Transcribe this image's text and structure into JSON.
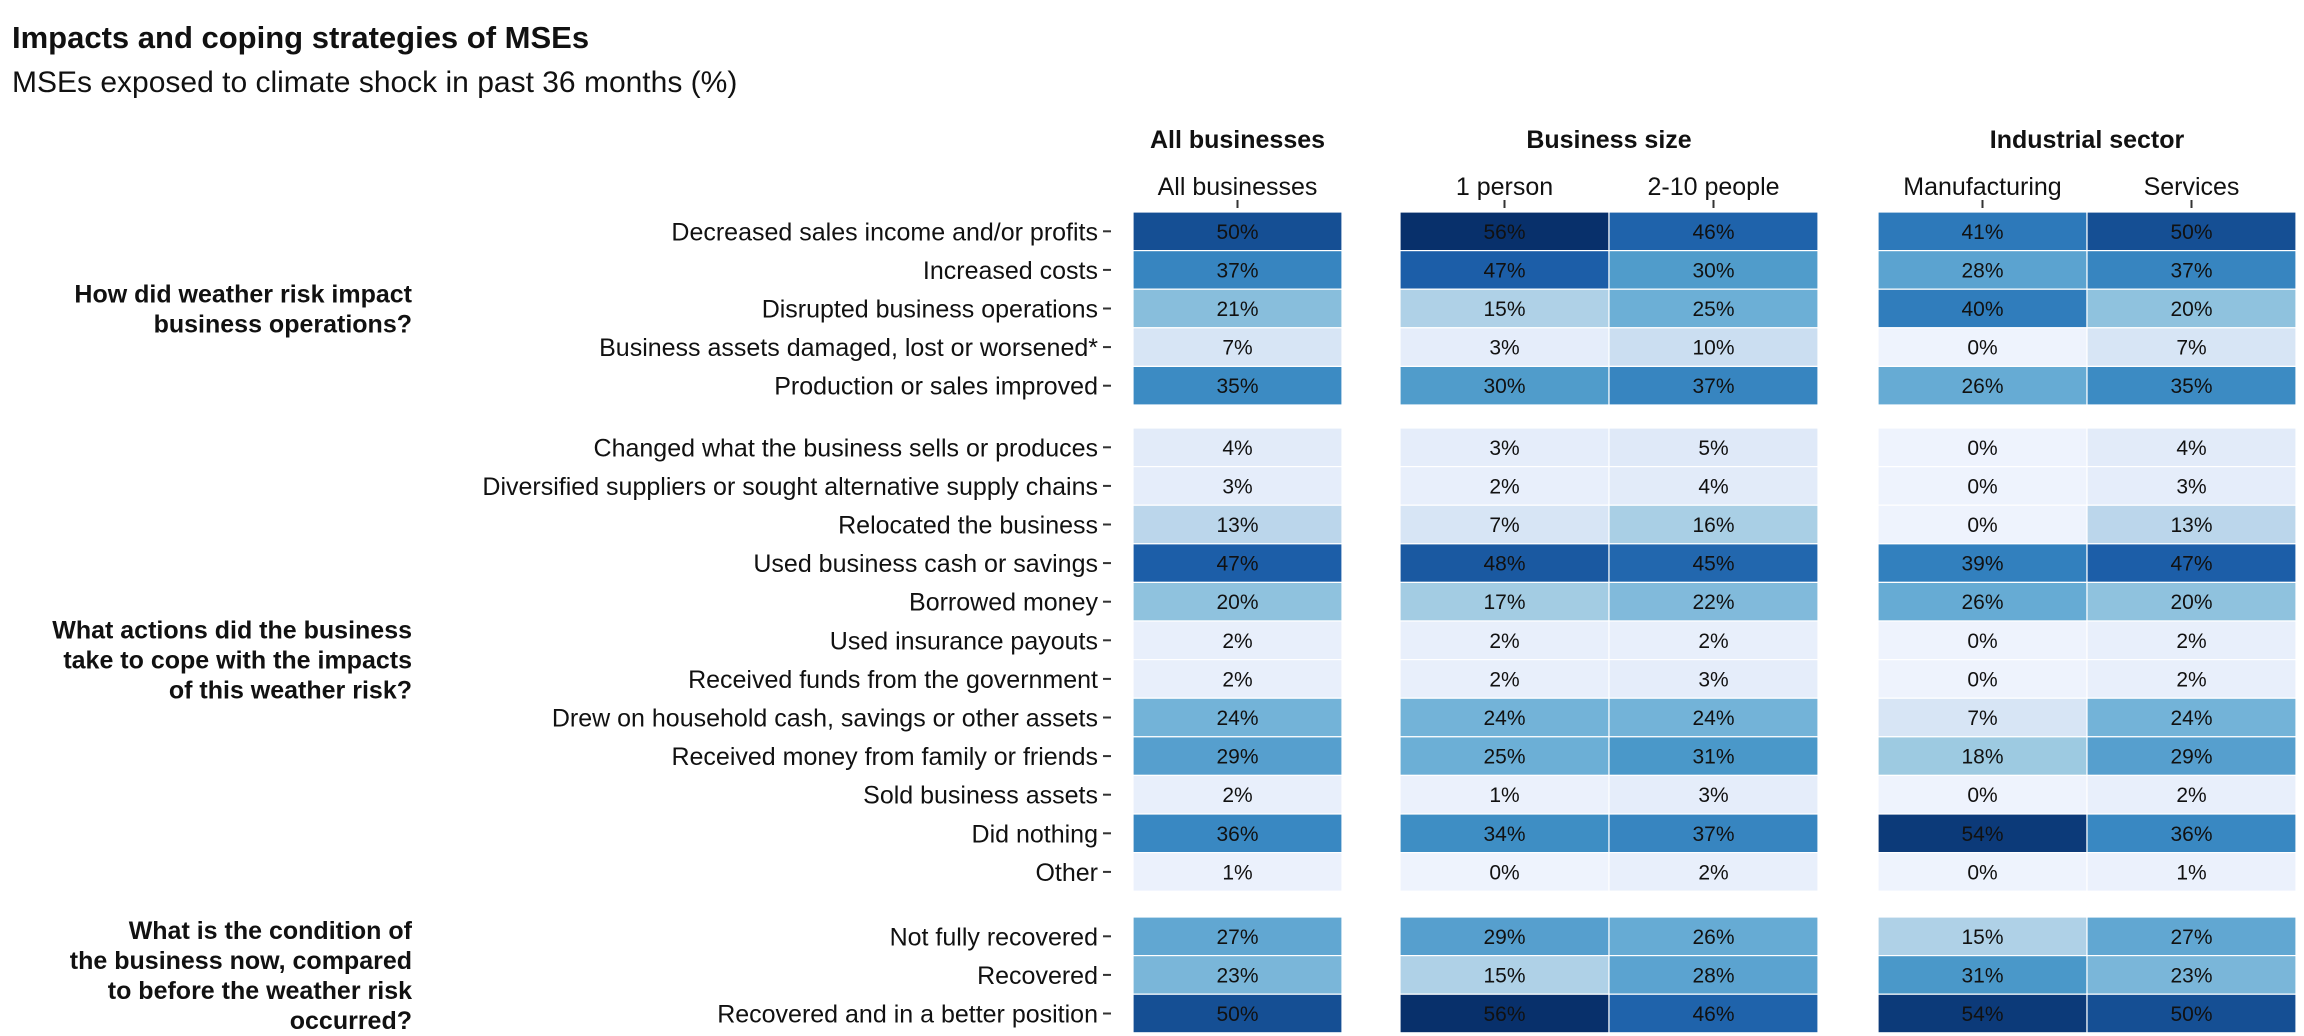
{
  "chart_data": {
    "type": "heatmap",
    "title": "Impacts and coping strategies of MSEs",
    "subtitle": "MSEs exposed to climate shock in past 36 months (%)",
    "panels": [
      {
        "title": "All businesses",
        "columns": [
          "All businesses"
        ]
      },
      {
        "title": "Business size",
        "columns": [
          "1 person",
          "2-10 people"
        ]
      },
      {
        "title": "Industrial sector",
        "columns": [
          "Manufacturing",
          "Services"
        ]
      }
    ],
    "groups": [
      {
        "label_lines": [
          "How did weather risk impact",
          "business operations?"
        ],
        "rows": [
          {
            "label": "Decreased sales income and/or profits",
            "values": [
              50,
              56,
              46,
              41,
              50
            ]
          },
          {
            "label": "Increased costs",
            "values": [
              37,
              47,
              30,
              28,
              37
            ]
          },
          {
            "label": "Disrupted business operations",
            "values": [
              21,
              15,
              25,
              40,
              20
            ]
          },
          {
            "label": "Business assets damaged, lost or worsened*",
            "values": [
              7,
              3,
              10,
              0,
              7
            ]
          },
          {
            "label": "Production or sales improved",
            "values": [
              35,
              30,
              37,
              26,
              35
            ]
          }
        ]
      },
      {
        "label_lines": [
          "What actions did the business",
          "take to cope with the impacts",
          "of this weather risk?"
        ],
        "rows": [
          {
            "label": "Changed what the business sells or produces",
            "values": [
              4,
              3,
              5,
              0,
              4
            ]
          },
          {
            "label": "Diversified suppliers or sought alternative supply chains",
            "values": [
              3,
              2,
              4,
              0,
              3
            ]
          },
          {
            "label": "Relocated the business",
            "values": [
              13,
              7,
              16,
              0,
              13
            ]
          },
          {
            "label": "Used business cash or savings",
            "values": [
              47,
              48,
              45,
              39,
              47
            ]
          },
          {
            "label": "Borrowed money",
            "values": [
              20,
              17,
              22,
              26,
              20
            ]
          },
          {
            "label": "Used insurance payouts",
            "values": [
              2,
              2,
              2,
              0,
              2
            ]
          },
          {
            "label": "Received funds from the government",
            "values": [
              2,
              2,
              3,
              0,
              2
            ]
          },
          {
            "label": "Drew on household cash, savings or other assets",
            "values": [
              24,
              24,
              24,
              7,
              24
            ]
          },
          {
            "label": "Received money from family or friends",
            "values": [
              29,
              25,
              31,
              18,
              29
            ]
          },
          {
            "label": "Sold business assets",
            "values": [
              2,
              1,
              3,
              0,
              2
            ]
          },
          {
            "label": "Did nothing",
            "values": [
              36,
              34,
              37,
              54,
              36
            ]
          },
          {
            "label": "Other",
            "values": [
              1,
              0,
              2,
              0,
              1
            ]
          }
        ]
      },
      {
        "label_lines": [
          "What is the condition of",
          "the business now, compared",
          "to before the weather risk",
          "occurred?"
        ],
        "rows": [
          {
            "label": "Not fully recovered",
            "values": [
              27,
              29,
              26,
              15,
              27
            ]
          },
          {
            "label": "Recovered",
            "values": [
              23,
              15,
              28,
              31,
              23
            ]
          },
          {
            "label": "Recovered and in a better position",
            "values": [
              50,
              56,
              46,
              54,
              50
            ]
          }
        ]
      }
    ],
    "value_suffix": "%",
    "color_scale": {
      "min": 0,
      "max": 56,
      "low": "#eef3fd",
      "high": "#08306b"
    }
  }
}
